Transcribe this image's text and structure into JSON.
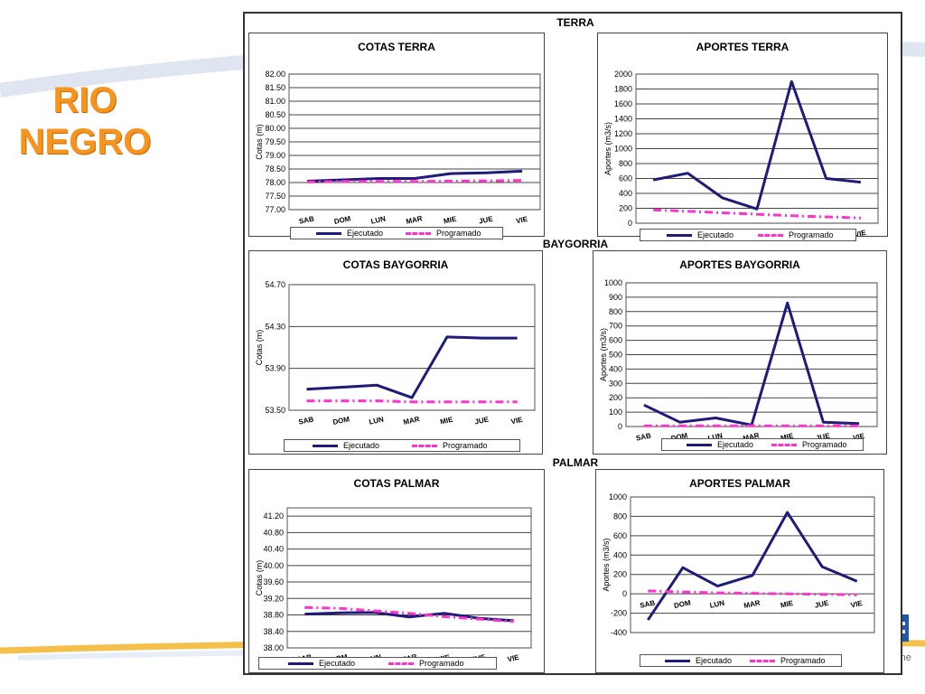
{
  "slide": {
    "title_line1": "RIO",
    "title_line2": "NEGRO",
    "slogan_fragment": "s une"
  },
  "sections": {
    "terra": "TERRA",
    "baygorria": "BAYGORRIA",
    "palmar": "PALMAR"
  },
  "legend": {
    "exec": "Ejecutado",
    "prog": "Programado"
  },
  "colors": {
    "exec": "#1f1b7a",
    "prog": "#ff33cc",
    "title": "#f7941d"
  },
  "chart_data": [
    {
      "id": "cotas-terra",
      "type": "line",
      "title": "COTAS TERRA",
      "xlabel": "",
      "ylabel": "Cotas (m)",
      "categories": [
        "SAB",
        "DOM",
        "LUN",
        "MAR",
        "MIE",
        "JUE",
        "VIE"
      ],
      "ylim": [
        77.0,
        82.0
      ],
      "yticks": [
        "82.00",
        "81.50",
        "81.00",
        "80.50",
        "80.00",
        "79.50",
        "79.00",
        "78.50",
        "78.00",
        "77.50",
        "77.00"
      ],
      "grid": true,
      "legend": "bottom",
      "series": [
        {
          "name": "Ejecutado",
          "values": [
            78.05,
            78.1,
            78.15,
            78.15,
            78.33,
            78.36,
            78.42
          ]
        },
        {
          "name": "Programado",
          "values": [
            78.02,
            78.04,
            78.04,
            78.04,
            78.05,
            78.06,
            78.08
          ]
        }
      ]
    },
    {
      "id": "aportes-terra",
      "type": "line",
      "title": "APORTES TERRA",
      "xlabel": "",
      "ylabel": "Aportes (m3/s)",
      "categories": [
        "SAB",
        "DOM",
        "LUN",
        "MAR",
        "MIE",
        "JUE",
        "VIE"
      ],
      "ylim": [
        0,
        2000
      ],
      "yticks": [
        "2000",
        "1800",
        "1600",
        "1400",
        "1200",
        "1000",
        "800",
        "600",
        "400",
        "200",
        "0"
      ],
      "grid": true,
      "legend": "bottom",
      "series": [
        {
          "name": "Ejecutado",
          "values": [
            580,
            670,
            340,
            190,
            1900,
            600,
            550
          ]
        },
        {
          "name": "Programado",
          "values": [
            180,
            160,
            140,
            120,
            100,
            85,
            70
          ]
        }
      ]
    },
    {
      "id": "cotas-baygorria",
      "type": "line",
      "title": "COTAS BAYGORRIA",
      "xlabel": "",
      "ylabel": "Cotas (m)",
      "categories": [
        "SAB",
        "DOM",
        "LUN",
        "MAR",
        "MIE",
        "JUE",
        "VIE"
      ],
      "ylim": [
        53.5,
        54.7
      ],
      "yticks": [
        "54.70",
        "54.30",
        "53.90",
        "53.50"
      ],
      "grid": true,
      "legend": "bottom",
      "series": [
        {
          "name": "Ejecutado",
          "values": [
            53.7,
            53.72,
            53.74,
            53.62,
            54.2,
            54.19,
            54.19
          ]
        },
        {
          "name": "Programado",
          "values": [
            53.59,
            53.59,
            53.59,
            53.58,
            53.58,
            53.58,
            53.58
          ]
        }
      ]
    },
    {
      "id": "aportes-baygorria",
      "type": "line",
      "title": "APORTES BAYGORRIA",
      "xlabel": "",
      "ylabel": "Aportes (m3/s)",
      "categories": [
        "SAB",
        "DOM",
        "LUN",
        "MAR",
        "MIE",
        "JUE",
        "VIE"
      ],
      "ylim": [
        0,
        1000
      ],
      "yticks": [
        "1000",
        "900",
        "800",
        "700",
        "600",
        "500",
        "400",
        "300",
        "200",
        "100",
        "0"
      ],
      "grid": true,
      "legend": "bottom",
      "series": [
        {
          "name": "Ejecutado",
          "values": [
            150,
            30,
            60,
            10,
            860,
            30,
            20
          ]
        },
        {
          "name": "Programado",
          "values": [
            5,
            5,
            5,
            5,
            5,
            5,
            5
          ]
        }
      ]
    },
    {
      "id": "cotas-palmar",
      "type": "line",
      "title": "COTAS PALMAR",
      "xlabel": "",
      "ylabel": "Cotas (m)",
      "categories": [
        "SAB",
        "DOM",
        "LUN",
        "MAR",
        "MIE",
        "JUE",
        "VIE"
      ],
      "ylim": [
        38.0,
        41.4
      ],
      "yticks": [
        "41.20",
        "40.80",
        "40.40",
        "40.00",
        "39.60",
        "39.20",
        "38.80",
        "38.40",
        "38.00"
      ],
      "grid": true,
      "legend": "bottom",
      "series": [
        {
          "name": "Ejecutado",
          "values": [
            38.82,
            38.85,
            38.86,
            38.75,
            38.84,
            38.72,
            38.66
          ]
        },
        {
          "name": "Programado",
          "values": [
            38.98,
            38.96,
            38.9,
            38.84,
            38.76,
            38.7,
            38.64
          ]
        }
      ]
    },
    {
      "id": "aportes-palmar",
      "type": "line",
      "title": "APORTES PALMAR",
      "xlabel": "",
      "ylabel": "Aportes (m3/s)",
      "categories": [
        "SAB",
        "DOM",
        "LUN",
        "MAR",
        "MIE",
        "JUE",
        "VIE"
      ],
      "ylim": [
        -400,
        1000
      ],
      "yticks": [
        "1000",
        "800",
        "600",
        "400",
        "200",
        "0",
        "-200",
        "-400"
      ],
      "grid": true,
      "legend": "bottom",
      "series": [
        {
          "name": "Ejecutado",
          "values": [
            -270,
            270,
            80,
            190,
            840,
            280,
            130
          ]
        },
        {
          "name": "Programado",
          "values": [
            30,
            20,
            10,
            5,
            0,
            -5,
            -10
          ]
        }
      ]
    }
  ]
}
